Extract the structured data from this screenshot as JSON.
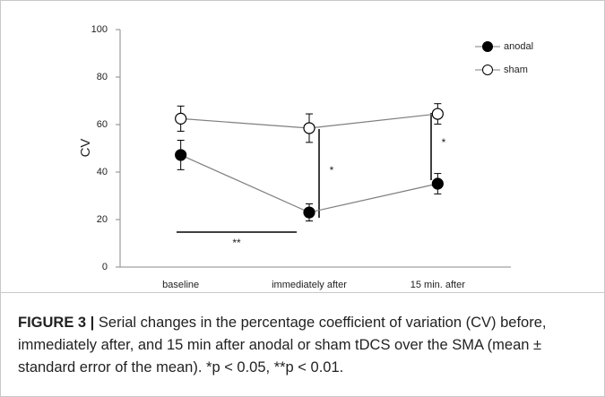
{
  "chart_data": {
    "type": "line",
    "ylabel": "CV",
    "categories": [
      "baseline",
      "immediately after",
      "15 min. after"
    ],
    "series": [
      {
        "name": "anodal",
        "color": "#000000",
        "marker_fill": "#000000",
        "values": [
          47.2,
          23.0,
          35.1
        ],
        "errors": [
          6.2,
          3.6,
          4.3
        ]
      },
      {
        "name": "sham",
        "color": "#000000",
        "marker_fill": "#ffffff",
        "values": [
          62.5,
          58.5,
          64.5
        ],
        "errors": [
          5.3,
          6.0,
          4.3
        ]
      }
    ],
    "ylim": [
      0,
      100
    ],
    "yticks": [
      0,
      20,
      40,
      60,
      80,
      100
    ],
    "line_color": "#7f7f7f",
    "legend": "upper right",
    "annotations": [
      {
        "text": "**"
      },
      {
        "text": "*"
      },
      {
        "text": "*"
      }
    ]
  },
  "caption": {
    "label": "FIGURE 3 |",
    "text": "Serial changes in the percentage coefficient of variation (CV) before, immediately after, and 15 min after anodal or sham tDCS over the SMA (mean ± standard error of the mean). *p < 0.05, **p < 0.01."
  }
}
